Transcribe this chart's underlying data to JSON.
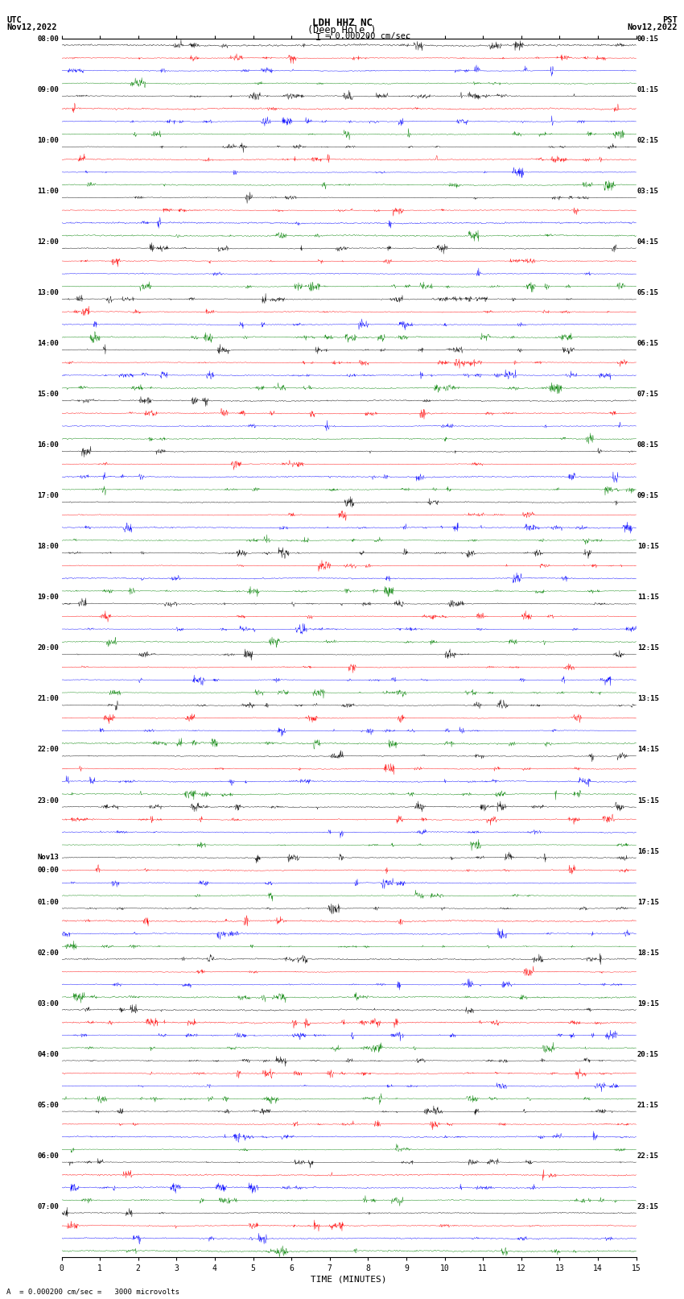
{
  "title_line1": "LDH HHZ NC",
  "title_line2": "(Deep Hole )",
  "scale_label": "= 0.000200 cm/sec",
  "bottom_label": "A  = 0.000200 cm/sec =   3000 microvolts",
  "xlabel": "TIME (MINUTES)",
  "utc_label": "UTC",
  "utc_date": "Nov12,2022",
  "pst_label": "PST",
  "pst_date": "Nov12,2022",
  "bg_color": "#ffffff",
  "trace_colors": [
    "black",
    "red",
    "blue",
    "green"
  ],
  "left_hour_labels": [
    "08:00",
    "09:00",
    "10:00",
    "11:00",
    "12:00",
    "13:00",
    "14:00",
    "15:00",
    "16:00",
    "17:00",
    "18:00",
    "19:00",
    "20:00",
    "21:00",
    "22:00",
    "23:00",
    "Nov13\n00:00",
    "01:00",
    "02:00",
    "03:00",
    "04:00",
    "05:00",
    "06:00",
    "07:00"
  ],
  "right_hour_labels": [
    "00:15",
    "01:15",
    "02:15",
    "03:15",
    "04:15",
    "05:15",
    "06:15",
    "07:15",
    "08:15",
    "09:15",
    "10:15",
    "11:15",
    "12:15",
    "13:15",
    "14:15",
    "15:15",
    "16:15",
    "17:15",
    "18:15",
    "19:15",
    "20:15",
    "21:15",
    "22:15",
    "23:15"
  ],
  "n_hours": 24,
  "traces_per_hour": 4,
  "xmin": 0,
  "xmax": 15,
  "seed": 42,
  "large_event_hour": 19,
  "large_event_hour2": 20
}
